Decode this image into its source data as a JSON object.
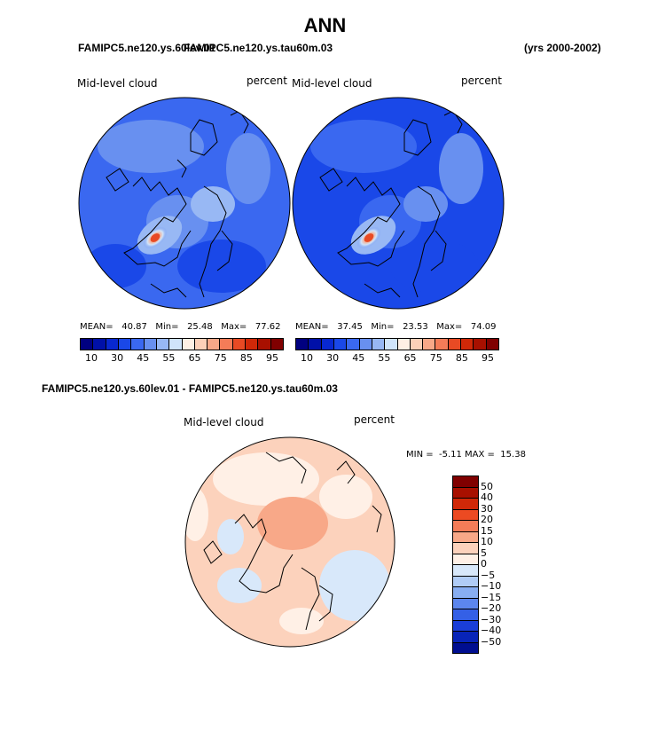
{
  "title": "ANN",
  "header": {
    "case_a": "FAMIPC5.ne120.ys.60lev.01",
    "case_b": "FAMIPC5.ne120.ys.tau60m.03",
    "years": "(yrs 2000-2002)"
  },
  "panels": [
    {
      "variable": "Mid-level cloud",
      "units": "percent",
      "mean_label": "MEAN=",
      "mean": "40.87",
      "min_label": "Min=",
      "min": "25.48",
      "max_label": "Max=",
      "max": "77.62"
    },
    {
      "variable": "Mid-level cloud",
      "units": "percent",
      "mean_label": "MEAN=",
      "mean": "37.45",
      "min_label": "Min=",
      "min": "23.53",
      "max_label": "Max=",
      "max": "74.09"
    }
  ],
  "abs_colorbar": {
    "colors": [
      "#000080",
      "#0010a8",
      "#0828d0",
      "#1a48e8",
      "#3a68f0",
      "#6890f0",
      "#98b8f4",
      "#d0e4fa",
      "#fff0e4",
      "#fcd0b8",
      "#f8a888",
      "#f47c58",
      "#e84a24",
      "#d02808",
      "#a81000",
      "#800000"
    ],
    "ticks": [
      "10",
      "30",
      "45",
      "55",
      "65",
      "75",
      "85",
      "95"
    ]
  },
  "diff_header": "FAMIPC5.ne120.ys.60lev.01 - FAMIPC5.ne120.ys.tau60m.03",
  "diff_panel": {
    "variable": "Mid-level cloud",
    "units": "percent",
    "min_label": "MIN =",
    "min": "-5.11",
    "max_label": "MAX =",
    "max": "15.38"
  },
  "diff_colorbar": {
    "colors": [
      "#800000",
      "#a81000",
      "#d02808",
      "#ec4a22",
      "#f47c58",
      "#f8a888",
      "#fcd2bc",
      "#fff0e6",
      "#d8e8fa",
      "#b0ccf6",
      "#88aef2",
      "#5c86ee",
      "#3460e6",
      "#1a3ed8",
      "#0824b8",
      "#000e90"
    ],
    "ticks": [
      "50",
      "40",
      "30",
      "20",
      "15",
      "10",
      "5",
      "0",
      "−5",
      "−10",
      "−15",
      "−20",
      "−30",
      "−40",
      "−50"
    ]
  }
}
